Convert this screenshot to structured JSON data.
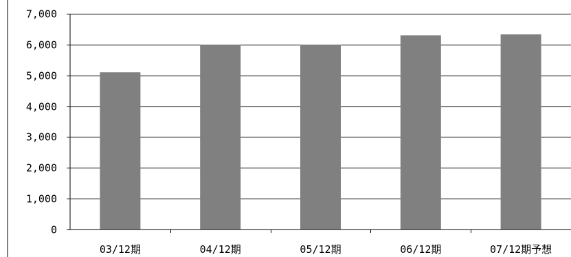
{
  "chart_data": {
    "type": "bar",
    "title": "",
    "xlabel": "",
    "ylabel": "",
    "categories": [
      "03/12期",
      "04/12期",
      "05/12期",
      "06/12期",
      "07/12期予想"
    ],
    "values": [
      5100,
      6000,
      6000,
      6300,
      6330
    ],
    "ylim": [
      0,
      7000
    ],
    "yticks": [
      0,
      1000,
      2000,
      3000,
      4000,
      5000,
      6000,
      7000
    ],
    "ytick_labels": [
      "0",
      "1,000",
      "2,000",
      "3,000",
      "4,000",
      "5,000",
      "6,000",
      "7,000"
    ],
    "grid": true,
    "legend": "none",
    "colors": {
      "bar": "#808080",
      "gridline": "#000000",
      "axis": "#000000",
      "background": "#ffffff"
    }
  }
}
